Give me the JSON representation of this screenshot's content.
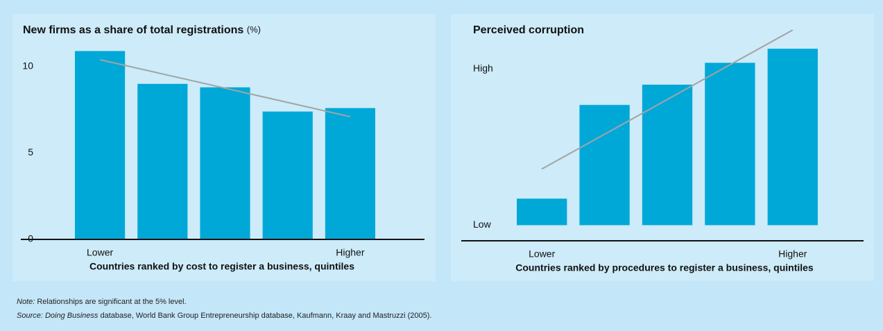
{
  "chart_data": [
    {
      "type": "bar",
      "title": "New firms as a share of total registrations",
      "unit": "(%)",
      "categories": [
        "Lower",
        null,
        null,
        null,
        "Higher"
      ],
      "values": [
        10.9,
        9.0,
        8.8,
        7.4,
        7.6
      ],
      "color": "#00a8d8",
      "trend": [
        10.4,
        7.1
      ],
      "trend_color": "#a3a3a3",
      "xlabel": "Countries ranked by cost to register a business, quintiles",
      "ylim": [
        0,
        11.5
      ],
      "yticks": [
        0,
        5,
        10
      ]
    },
    {
      "type": "bar",
      "title": "Perceived corruption",
      "categories": [
        "Lower",
        null,
        null,
        null,
        "Higher"
      ],
      "values": [
        0.17,
        0.77,
        0.9,
        1.04,
        1.13
      ],
      "color": "#00a8d8",
      "trend": [
        0.36,
        1.25
      ],
      "trend_color": "#a3a3a3",
      "xlabel": "Countries ranked by procedures to register a business, quintiles",
      "ylim": [
        -0.1,
        1.3
      ],
      "yticks": [
        {
          "value": 0,
          "label": "Low"
        },
        {
          "value": 1,
          "label": "High"
        }
      ]
    }
  ],
  "note": {
    "label": "Note:",
    "text": "Relationships are significant at the 5% level."
  },
  "source": {
    "label": "Source:",
    "italic": "Doing Business",
    "text": "database, World Bank Group Entrepreneurship database, Kaufmann, Kraay and Mastruzzi (2005)."
  }
}
